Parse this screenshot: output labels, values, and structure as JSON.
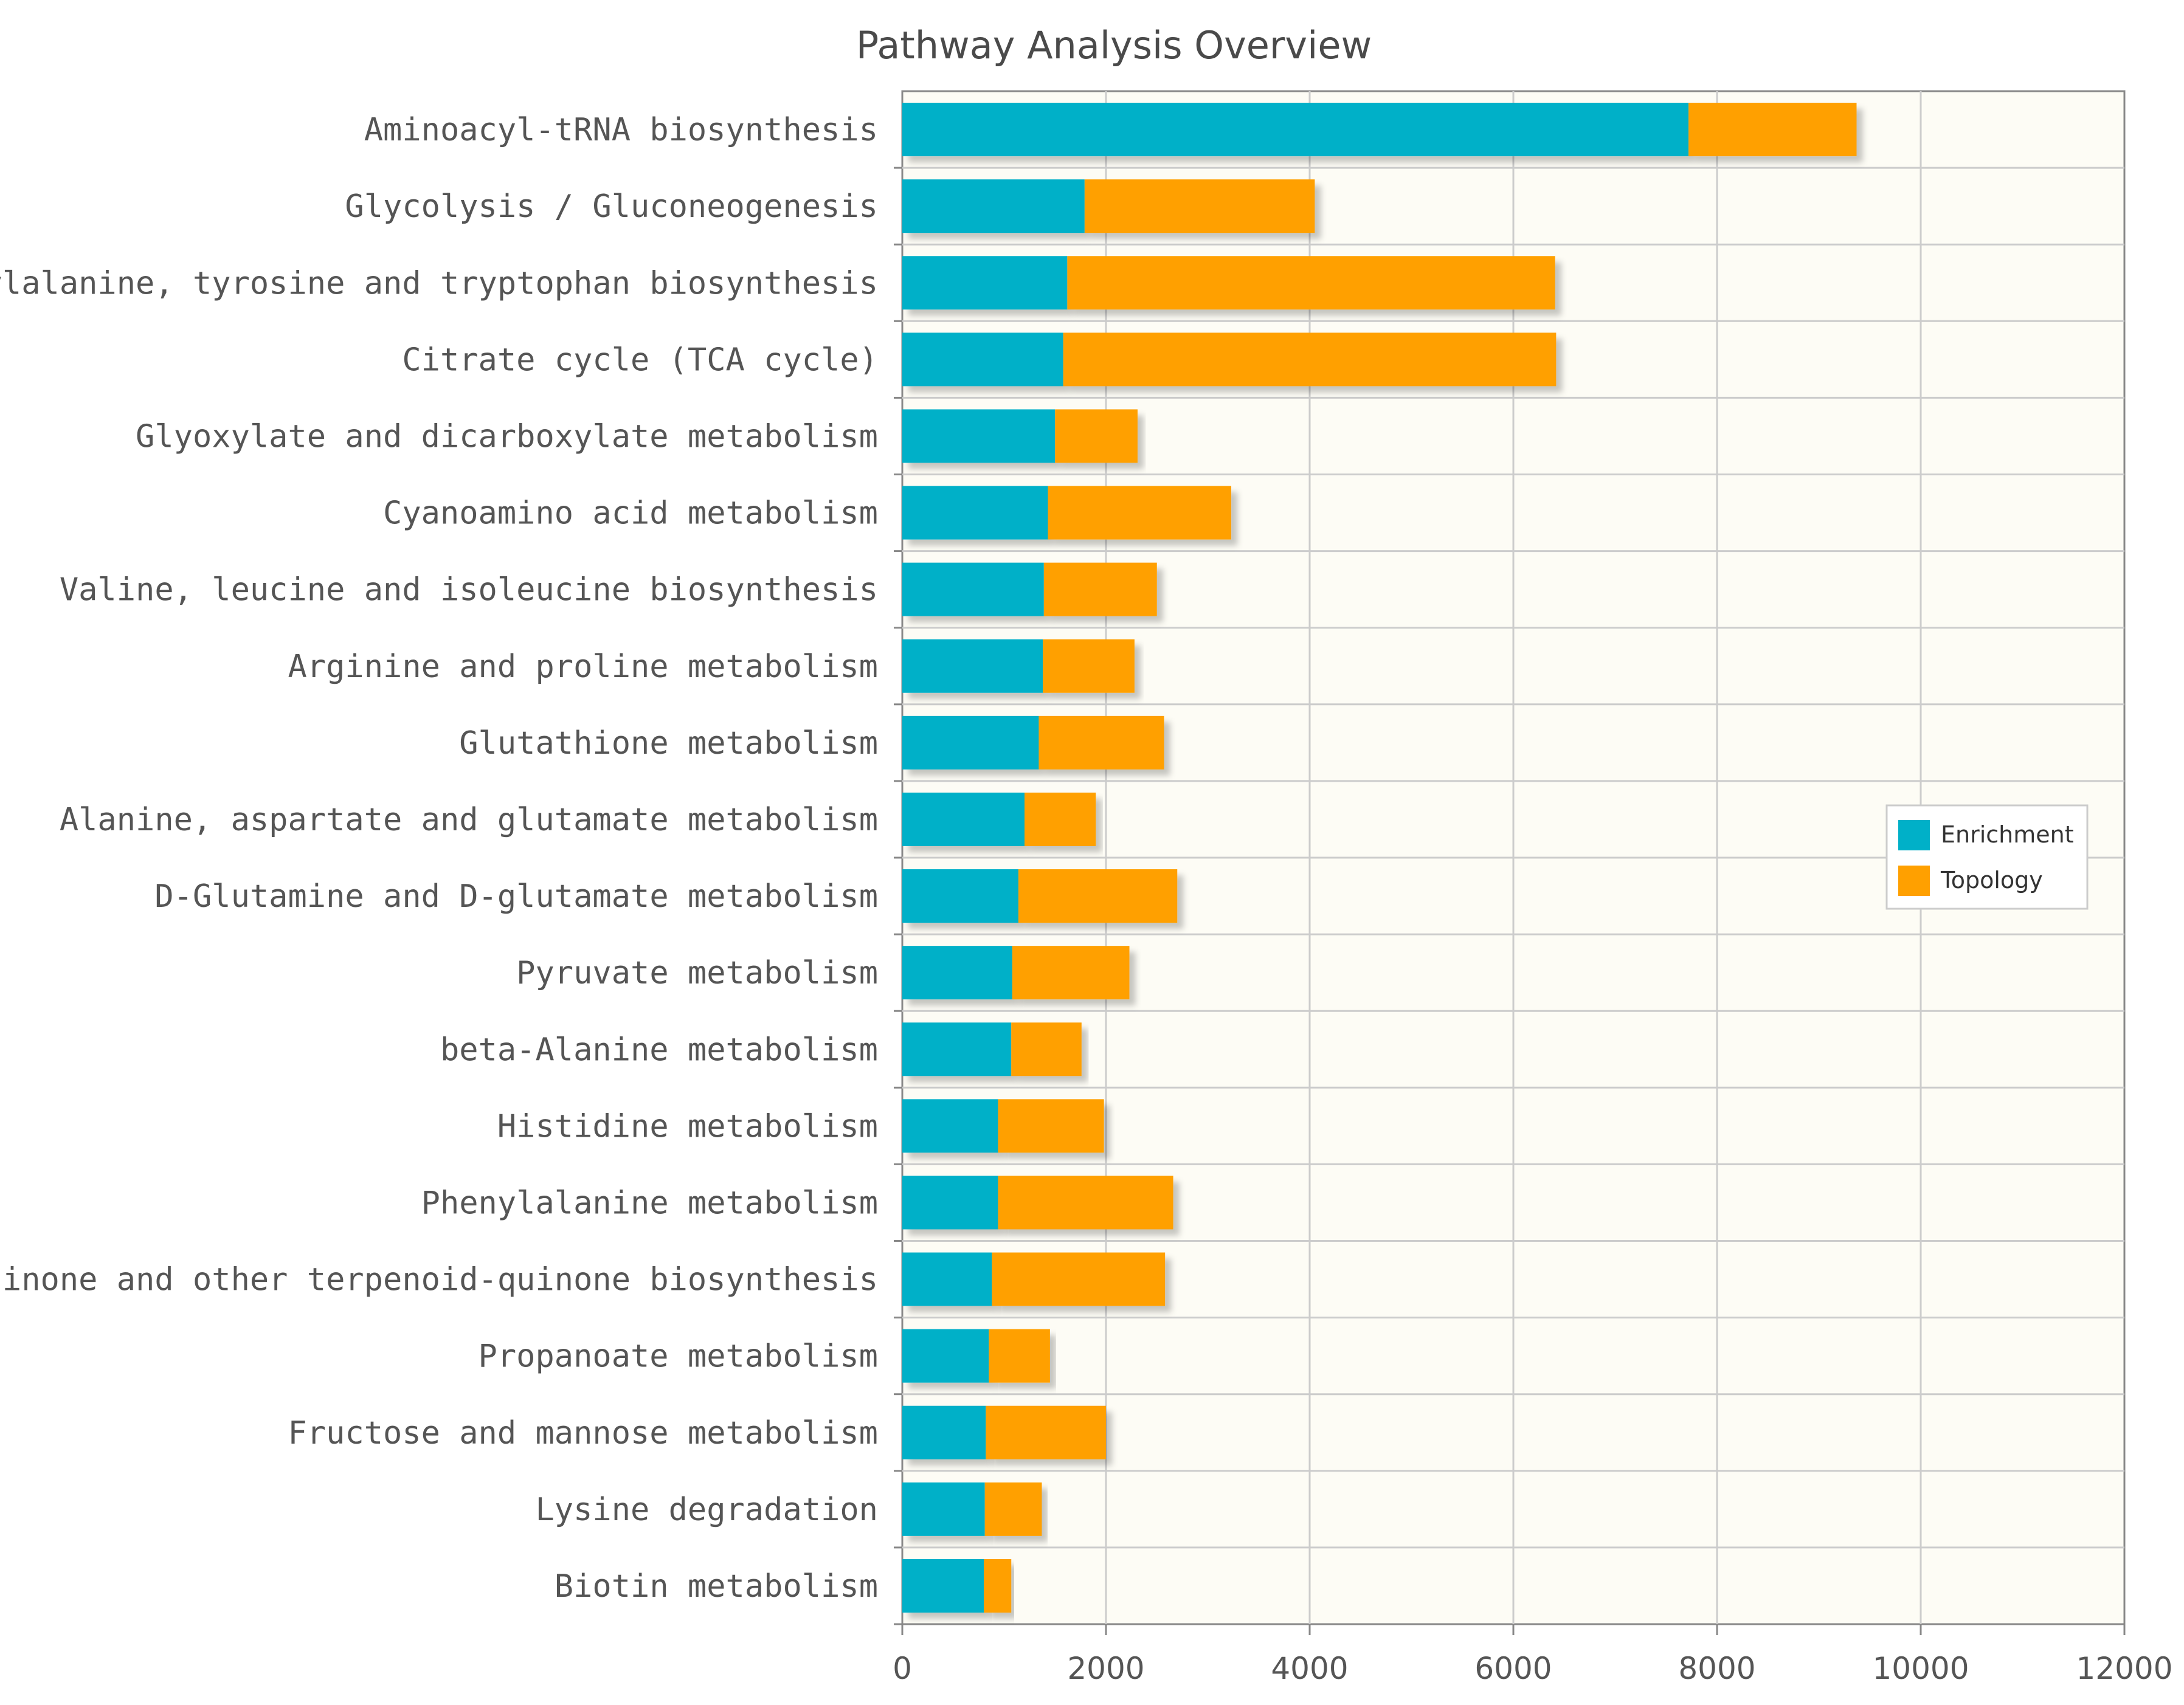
{
  "chart_data": {
    "type": "bar",
    "orientation": "horizontal",
    "stacked": true,
    "title": "Pathway Analysis Overview",
    "xlabel": "",
    "ylabel": "",
    "xlim": [
      0,
      12000
    ],
    "x_ticks": [
      0,
      2000,
      4000,
      6000,
      8000,
      10000,
      12000
    ],
    "grid": true,
    "legend_position": "right",
    "colors": {
      "enrichment": "#00b0c8",
      "topology": "#ffa000",
      "plot_background": "#fdfcf5",
      "grid": "#cccccc",
      "axis": "#888888"
    },
    "categories": [
      "Aminoacyl-tRNA biosynthesis",
      "Glycolysis / Gluconeogenesis",
      "Phenylalanine, tyrosine and tryptophan biosynthesis",
      "Citrate cycle (TCA cycle)",
      "Glyoxylate and dicarboxylate metabolism",
      "Cyanoamino acid metabolism",
      "Valine, leucine and isoleucine biosynthesis",
      "Arginine and proline metabolism",
      "Glutathione metabolism",
      "Alanine, aspartate and glutamate metabolism",
      "D-Glutamine and D-glutamate metabolism",
      "Pyruvate metabolism",
      "beta-Alanine metabolism",
      "Histidine metabolism",
      "Phenylalanine metabolism",
      "Ubiquinone and other terpenoid-quinone biosynthesis",
      "Propanoate metabolism",
      "Fructose and mannose metabolism",
      "Lysine degradation",
      "Biotin metabolism"
    ],
    "series": [
      {
        "name": "Enrichment",
        "values": [
          7720,
          1790,
          1620,
          1580,
          1500,
          1430,
          1390,
          1380,
          1340,
          1200,
          1140,
          1080,
          1070,
          940,
          940,
          880,
          850,
          820,
          810,
          800
        ]
      },
      {
        "name": "Topology",
        "values": [
          1650,
          2260,
          4790,
          4840,
          810,
          1800,
          1110,
          900,
          1230,
          700,
          1560,
          1150,
          690,
          1040,
          1720,
          1700,
          600,
          1180,
          560,
          270
        ]
      }
    ]
  }
}
